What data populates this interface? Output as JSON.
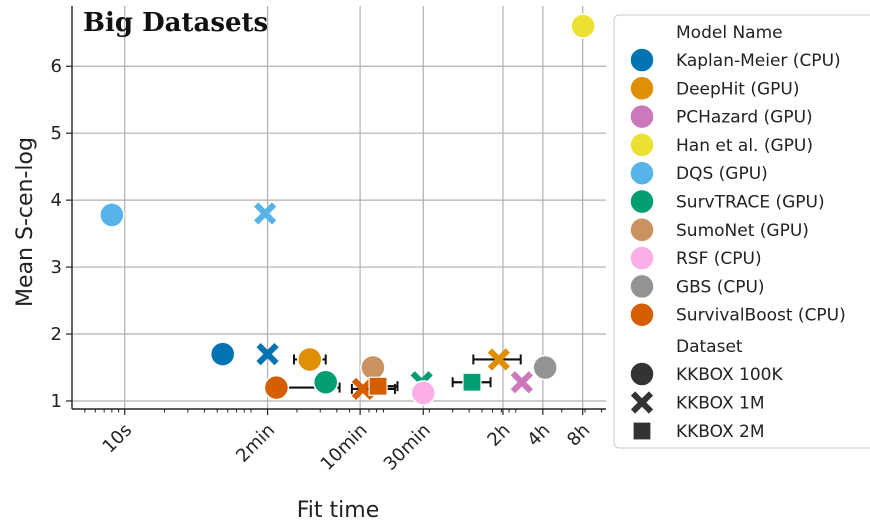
{
  "chart_data": {
    "type": "scatter",
    "title": "Big Datasets",
    "xlabel": "Fit time",
    "ylabel": "Mean S-cen-log",
    "x_scale": "log",
    "x_unit": "seconds",
    "xlim": [
      4,
      43200
    ],
    "ylim": [
      0.88,
      6.9
    ],
    "yticks": [
      1,
      2,
      3,
      4,
      5,
      6
    ],
    "xticks": [
      {
        "value": 10,
        "label": "10s"
      },
      {
        "value": 120,
        "label": "2min"
      },
      {
        "value": 600,
        "label": "10min"
      },
      {
        "value": 1800,
        "label": "30min"
      },
      {
        "value": 7200,
        "label": "2h"
      },
      {
        "value": 14400,
        "label": "4h"
      },
      {
        "value": 28800,
        "label": "8h"
      }
    ],
    "grid": true,
    "legend_placement": "outside-right",
    "legend_title": "Model Name",
    "dataset_legend_title": "Dataset",
    "datasets": [
      {
        "name": "KKBOX 100K",
        "marker": "circle"
      },
      {
        "name": "KKBOX 1M",
        "marker": "x"
      },
      {
        "name": "KKBOX 2M",
        "marker": "square"
      }
    ],
    "series": [
      {
        "name": "Kaplan-Meier (CPU)",
        "color": "#0173b2",
        "points": [
          {
            "x": 55,
            "y": 1.7,
            "dataset": "KKBOX 100K"
          },
          {
            "x": 120,
            "y": 1.7,
            "dataset": "KKBOX 1M"
          }
        ]
      },
      {
        "name": "DeepHit (GPU)",
        "color": "#de8f05",
        "points": [
          {
            "x": 250,
            "y": 1.62,
            "dataset": "KKBOX 100K",
            "xerr": [
              190,
              330
            ]
          },
          {
            "x": 6700,
            "y": 1.62,
            "dataset": "KKBOX 1M",
            "xerr": [
              4300,
              9800
            ]
          }
        ]
      },
      {
        "name": "PCHazard (GPU)",
        "color": "#cc78bc",
        "points": [
          {
            "x": 10000,
            "y": 1.28,
            "dataset": "KKBOX 1M"
          }
        ]
      },
      {
        "name": "Han et al. (GPU)",
        "color": "#ece133",
        "points": [
          {
            "x": 29000,
            "y": 6.6,
            "dataset": "KKBOX 100K"
          }
        ]
      },
      {
        "name": "DQS (GPU)",
        "color": "#56b4e9",
        "points": [
          {
            "x": 8,
            "y": 3.78,
            "dataset": "KKBOX 100K"
          },
          {
            "x": 115,
            "y": 3.8,
            "dataset": "KKBOX 1M"
          }
        ]
      },
      {
        "name": "SurvTRACE (GPU)",
        "color": "#029e73",
        "points": [
          {
            "x": 330,
            "y": 1.28,
            "dataset": "KKBOX 100K"
          },
          {
            "x": 1750,
            "y": 1.28,
            "dataset": "KKBOX 1M"
          },
          {
            "x": 4200,
            "y": 1.28,
            "dataset": "KKBOX 2M",
            "xerr": [
              3000,
              5800
            ]
          }
        ]
      },
      {
        "name": "SumoNet (GPU)",
        "color": "#ca9161",
        "points": [
          {
            "x": 750,
            "y": 1.5,
            "dataset": "KKBOX 100K"
          }
        ]
      },
      {
        "name": "RSF (CPU)",
        "color": "#fbafe4",
        "points": [
          {
            "x": 1800,
            "y": 1.12,
            "dataset": "KKBOX 100K"
          }
        ]
      },
      {
        "name": "GBS (CPU)",
        "color": "#949494",
        "points": [
          {
            "x": 15000,
            "y": 1.5,
            "dataset": "KKBOX 100K"
          }
        ]
      },
      {
        "name": "SurvivalBoost (CPU)",
        "color": "#d55e00",
        "points": [
          {
            "x": 140,
            "y": 1.2,
            "dataset": "KKBOX 100K",
            "xerr": [
              140,
              420
            ]
          },
          {
            "x": 630,
            "y": 1.18,
            "dataset": "KKBOX 1M",
            "xerr": [
              520,
              1100
            ]
          },
          {
            "x": 820,
            "y": 1.22,
            "dataset": "KKBOX 2M",
            "xerr": [
              820,
              1150
            ]
          }
        ]
      }
    ]
  }
}
